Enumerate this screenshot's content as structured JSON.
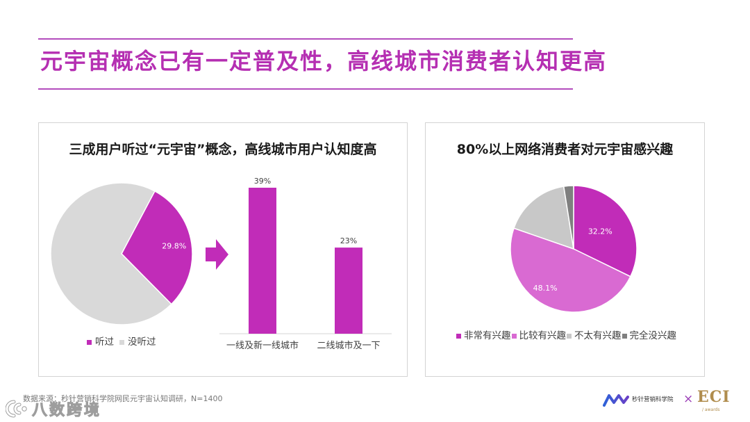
{
  "slide": {
    "title": "元宇宙概念已有一定普及性，高线城市消费者认知更高",
    "source_note": "数据来源：秒针营销科学院网民元宇宙认知调研，N=1400",
    "watermark_text": "八数跨境",
    "footer_logo_text": "秒针营销科学院",
    "footer_separator": "×",
    "awards_letters": "ECI",
    "awards_caption": "/ awards"
  },
  "panels": {
    "awareness_title": "三成用户听过“元宇宙”概念，高线城市用户认知度高",
    "interest_title": "80%以上网络消费者对元宇宙感兴趣"
  },
  "colors": {
    "title": "#b52fb2",
    "rule_line": "#b34cbd",
    "panel_border": "#d3d3d3",
    "arrow": "#c12cb8",
    "awards_gold": "#b08d4e"
  },
  "icons": {
    "transition_arrow": "right-arrow-icon",
    "footer_logo": "wave-logo-icon",
    "watermark_logo": "swirl-logo-icon"
  },
  "chart_data": [
    {
      "type": "pie",
      "slices": [
        {
          "label": "听过",
          "value": 29.8,
          "data_label": "29.8%",
          "color": "#c12cb8"
        },
        {
          "label": "没听过",
          "value": 70.2,
          "data_label": "",
          "color": "#d9d9d9"
        }
      ],
      "legend": "bottom"
    },
    {
      "type": "bar",
      "categories": [
        "一线及新一线城市",
        "二线城市及一下"
      ],
      "values": [
        39,
        23
      ],
      "data_labels": [
        "39%",
        "23%"
      ],
      "ylim": [
        0,
        40
      ],
      "color": "#c12cb8",
      "grid": false
    },
    {
      "type": "pie",
      "slices": [
        {
          "label": "非常有兴趣",
          "value": 32.2,
          "data_label": "32.2%",
          "color": "#c12cb8"
        },
        {
          "label": "比较有兴趣",
          "value": 48.1,
          "data_label": "48.1%",
          "color": "#d96ad2"
        },
        {
          "label": "不太有兴趣",
          "value": 17.2,
          "data_label": "",
          "color": "#c8c8c8"
        },
        {
          "label": "完全没兴趣",
          "value": 2.5,
          "data_label": "",
          "color": "#7f7f7f"
        }
      ],
      "legend": "bottom"
    }
  ]
}
